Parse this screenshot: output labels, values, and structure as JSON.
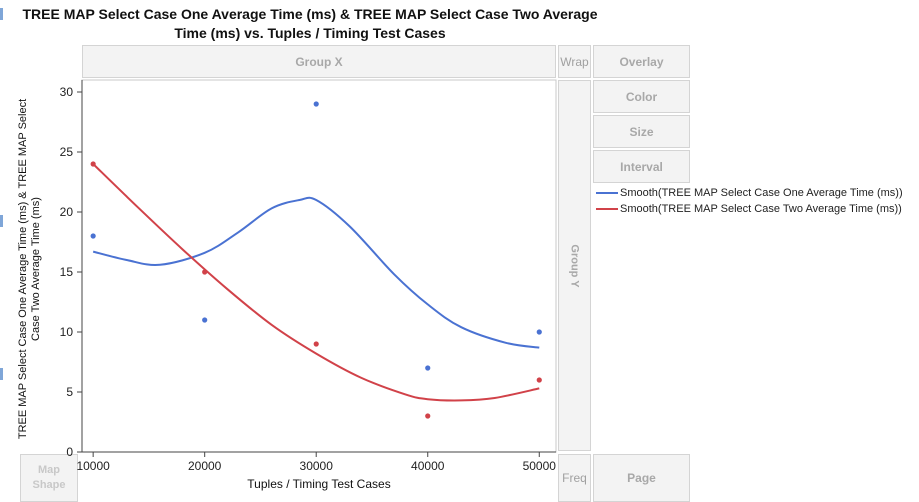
{
  "title": "TREE MAP Select Case One Average Time (ms) & TREE MAP Select Case Two Average Time (ms) vs. Tuples / Timing Test Cases",
  "zones": {
    "group_x": "Group X",
    "wrap": "Wrap",
    "overlay": "Overlay",
    "color": "Color",
    "size": "Size",
    "interval": "Interval",
    "group_y": "Group Y",
    "freq": "Freq",
    "page": "Page",
    "map_shape_line1": "Map",
    "map_shape_line2": "Shape"
  },
  "legend": [
    {
      "label": "Smooth(TREE MAP Select Case One Average Time (ms))",
      "color": "#4a72d2"
    },
    {
      "label": "Smooth(TREE MAP Select Case Two Average Time (ms))",
      "color": "#d14249"
    }
  ],
  "chart_data": {
    "type": "scatter",
    "xlabel": "Tuples / Timing Test Cases",
    "ylabel": "TREE MAP Select Case One Average Time (ms) & TREE MAP Select Case Two Average Time (ms)",
    "xlim": [
      9000,
      51500
    ],
    "ylim": [
      0,
      31
    ],
    "x_ticks": [
      10000,
      20000,
      30000,
      40000,
      50000
    ],
    "y_ticks": [
      0,
      5,
      10,
      15,
      20,
      25,
      30
    ],
    "grid": false,
    "legend_position": "right",
    "series": [
      {
        "color": "#4a72d2",
        "points": [
          [
            10000,
            18
          ],
          [
            20000,
            11
          ],
          [
            30000,
            29
          ],
          [
            40000,
            7
          ],
          [
            50000,
            10
          ]
        ],
        "smooth": [
          [
            10000,
            16.7
          ],
          [
            13000,
            16.0
          ],
          [
            16000,
            15.6
          ],
          [
            20000,
            16.6
          ],
          [
            23000,
            18.3
          ],
          [
            26000,
            20.3
          ],
          [
            28500,
            21.0
          ],
          [
            30000,
            21.0
          ],
          [
            33000,
            18.8
          ],
          [
            37000,
            14.8
          ],
          [
            40000,
            12.3
          ],
          [
            43000,
            10.4
          ],
          [
            47000,
            9.1
          ],
          [
            50000,
            8.7
          ]
        ]
      },
      {
        "color": "#d14249",
        "points": [
          [
            10000,
            24
          ],
          [
            20000,
            15
          ],
          [
            30000,
            9
          ],
          [
            40000,
            3
          ],
          [
            50000,
            6
          ]
        ],
        "smooth": [
          [
            10000,
            24.0
          ],
          [
            14000,
            20.4
          ],
          [
            18000,
            16.9
          ],
          [
            22000,
            13.6
          ],
          [
            26000,
            10.6
          ],
          [
            30000,
            8.2
          ],
          [
            34000,
            6.2
          ],
          [
            38000,
            4.8
          ],
          [
            40000,
            4.4
          ],
          [
            43000,
            4.3
          ],
          [
            46000,
            4.5
          ],
          [
            50000,
            5.3
          ]
        ]
      }
    ]
  }
}
